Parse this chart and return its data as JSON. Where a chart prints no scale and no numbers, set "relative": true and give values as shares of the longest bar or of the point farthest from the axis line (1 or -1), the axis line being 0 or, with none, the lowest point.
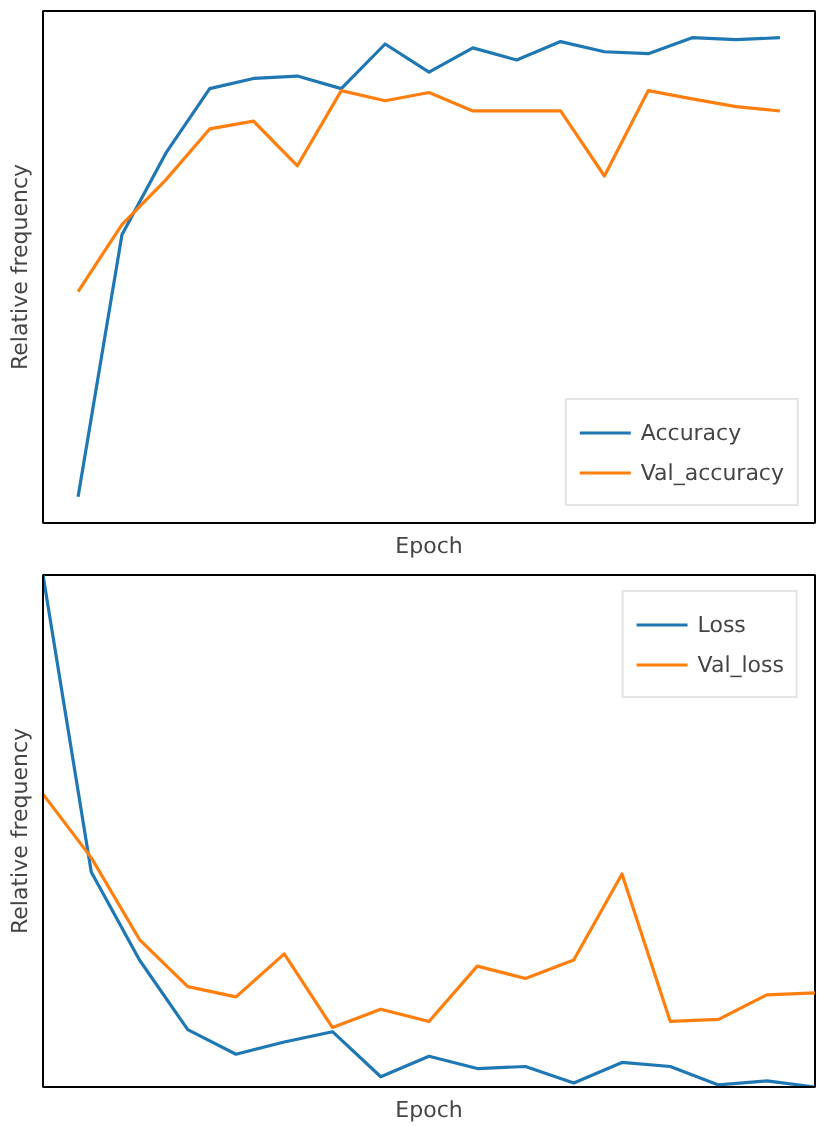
{
  "chart_data": [
    {
      "type": "line",
      "relative": true,
      "xlabel": "Epoch",
      "ylabel": "Relative frequency",
      "legend": "bottom right",
      "categories": [
        null,
        null,
        null,
        null,
        null,
        null,
        null,
        null,
        null,
        null,
        null,
        null,
        null,
        null,
        null,
        null,
        null
      ],
      "series": [
        {
          "name": "Accuracy",
          "color": "#1f77b4",
          "values": [
            0.054,
            0.594,
            0.762,
            0.895,
            0.916,
            0.921,
            0.895,
            0.987,
            0.929,
            0.979,
            0.954,
            0.992,
            0.971,
            0.967,
            1.0,
            0.996,
            1.0
          ]
        },
        {
          "name": "Val_accuracy",
          "color": "#ff7f0e",
          "values": [
            0.477,
            0.615,
            0.707,
            0.812,
            0.828,
            0.736,
            0.891,
            0.87,
            0.887,
            0.849,
            0.849,
            0.849,
            0.715,
            0.891,
            0.874,
            0.858,
            0.849
          ]
        }
      ]
    },
    {
      "type": "line",
      "relative": true,
      "xlabel": "Epoch",
      "ylabel": "Relative frequency",
      "legend": "top right",
      "categories": [
        null,
        null,
        null,
        null,
        null,
        null,
        null,
        null,
        null,
        null,
        null,
        null,
        null,
        null,
        null,
        null,
        null
      ],
      "series": [
        {
          "name": "Loss",
          "color": "#1f77b4",
          "values": [
            1.0,
            0.42,
            0.248,
            0.112,
            0.064,
            0.088,
            0.108,
            0.02,
            0.06,
            0.036,
            0.04,
            0.008,
            0.048,
            0.04,
            0.004,
            0.012,
            0.0
          ]
        },
        {
          "name": "Val_loss",
          "color": "#ff7f0e",
          "values": [
            0.572,
            0.448,
            0.288,
            0.196,
            0.176,
            0.26,
            0.116,
            0.152,
            0.128,
            0.236,
            0.212,
            0.248,
            0.416,
            0.128,
            0.132,
            0.18,
            0.184
          ]
        }
      ]
    }
  ]
}
